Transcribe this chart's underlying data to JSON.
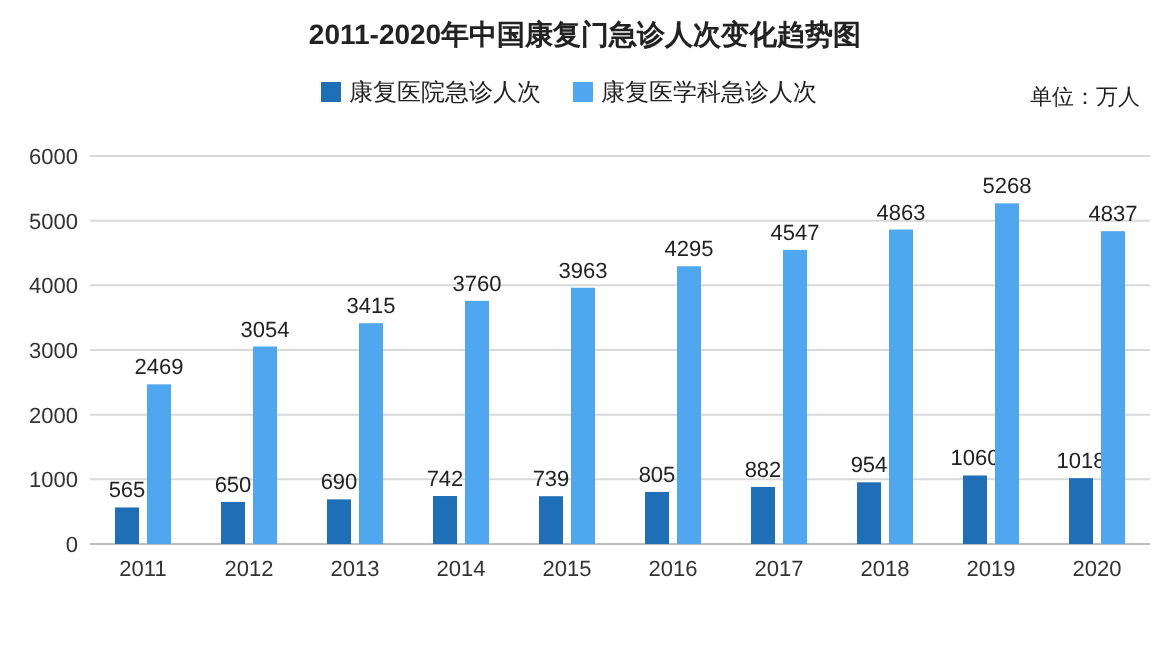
{
  "chart_data": {
    "type": "bar",
    "title": "2011-2020年中国康复门急诊人次变化趋势图",
    "annotations": [
      "单位：万人"
    ],
    "categories": [
      "2011",
      "2012",
      "2013",
      "2014",
      "2015",
      "2016",
      "2017",
      "2018",
      "2019",
      "2020"
    ],
    "series": [
      {
        "name": "康复医院急诊人次",
        "color": "#1f6fb8",
        "values": [
          565,
          650,
          690,
          742,
          739,
          805,
          882,
          954,
          1060,
          1018
        ]
      },
      {
        "name": "康复医学科急诊人次",
        "color": "#4fa8ef",
        "values": [
          2469,
          3054,
          3415,
          3760,
          3963,
          4295,
          4547,
          4863,
          5268,
          4837
        ]
      }
    ],
    "ylim": [
      0,
      6000
    ],
    "yticks": [
      0,
      1000,
      2000,
      3000,
      4000,
      5000,
      6000
    ],
    "grid": "y",
    "legend": "top",
    "data_labels": true
  }
}
